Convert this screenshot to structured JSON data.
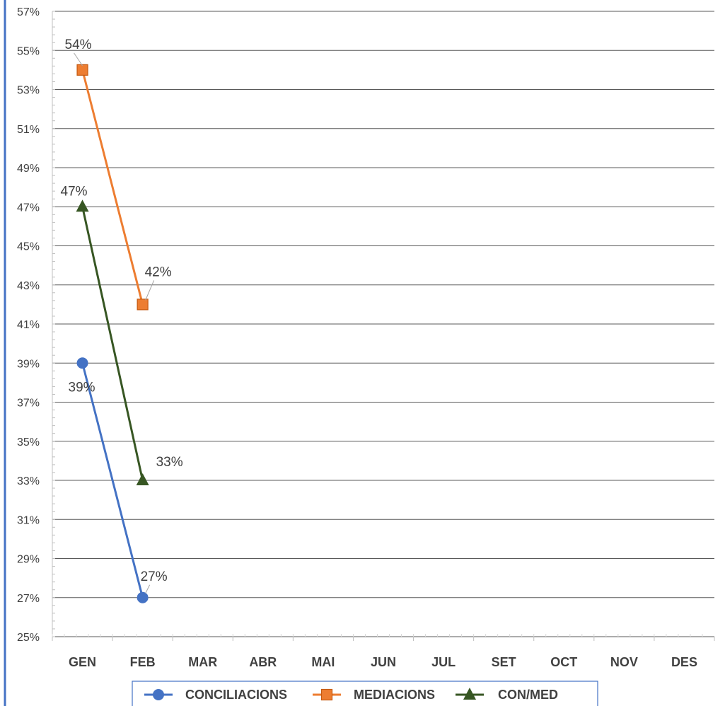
{
  "chart_data": {
    "type": "line",
    "categories": [
      "GEN",
      "FEB",
      "MAR",
      "ABR",
      "MAI",
      "JUN",
      "JUL",
      "SET",
      "OCT",
      "NOV",
      "DES"
    ],
    "series": [
      {
        "name": "CONCILIACIONS",
        "color": "#4472C4",
        "marker": "circle",
        "values": [
          39,
          27,
          null,
          null,
          null,
          null,
          null,
          null,
          null,
          null,
          null
        ],
        "labels": [
          "39%",
          "27%"
        ]
      },
      {
        "name": "MEDIACIONS",
        "color": "#ED7D31",
        "marker": "square",
        "values": [
          54,
          42,
          null,
          null,
          null,
          null,
          null,
          null,
          null,
          null,
          null
        ],
        "labels": [
          "54%",
          "42%"
        ]
      },
      {
        "name": "CON/MED",
        "color": "#375623",
        "marker": "triangle",
        "values": [
          47,
          33,
          null,
          null,
          null,
          null,
          null,
          null,
          null,
          null,
          null
        ],
        "labels": [
          "47%",
          "33%"
        ]
      }
    ],
    "ylim": [
      25,
      57
    ],
    "yticks": [
      25,
      27,
      29,
      31,
      33,
      35,
      37,
      39,
      41,
      43,
      45,
      47,
      49,
      51,
      53,
      55,
      57
    ],
    "ytick_labels": [
      "25%",
      "27%",
      "29%",
      "31%",
      "33%",
      "35%",
      "37%",
      "39%",
      "41%",
      "43%",
      "45%",
      "47%",
      "49%",
      "51%",
      "53%",
      "55%",
      "57%"
    ],
    "grid": true,
    "legend_position": "bottom",
    "title": "",
    "xlabel": "",
    "ylabel": "",
    "frame_color": "#4472C4",
    "grid_color": "#595959"
  }
}
